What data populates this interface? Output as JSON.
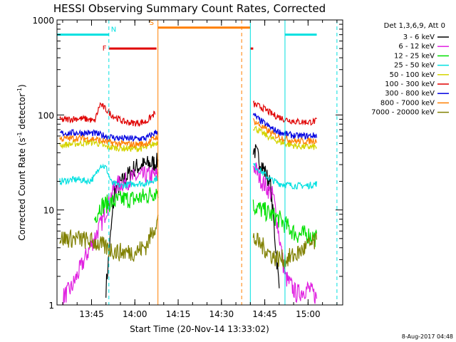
{
  "chart_data": {
    "type": "line",
    "title": "HESSI Observing Summary Count Rates, Corrected",
    "ylabel": "Corrected Count Rate",
    "ylabel_units": "(s",
    "ylabel_sup1": "-1",
    "ylabel_units2": " detector",
    "ylabel_sup2": "-1",
    "ylabel_close": ")",
    "xlabel": "Start Time (20-Nov-14 13:33:02)",
    "yscale": "log",
    "ylim": [
      1,
      1000
    ],
    "xlim": [
      "13:33:02",
      "15:12:00"
    ],
    "x_ticks": [
      {
        "t": "13:45",
        "label": "13:45"
      },
      {
        "t": "14:00",
        "label": "14:00"
      },
      {
        "t": "14:15",
        "label": "14:15"
      },
      {
        "t": "14:30",
        "label": "14:30"
      },
      {
        "t": "14:45",
        "label": "14:45"
      },
      {
        "t": "15:00",
        "label": "15:00"
      }
    ],
    "y_ticks": [
      {
        "v": 1,
        "label": "1"
      },
      {
        "v": 10,
        "label": "10"
      },
      {
        "v": 100,
        "label": "100"
      },
      {
        "v": 1000,
        "label": "1000"
      }
    ],
    "legend": {
      "placement": "right",
      "header": "Det 1,3,6,9, Att 0"
    },
    "series": [
      {
        "name": "3 - 6 keV",
        "color": "#000000",
        "t": [
          "13:33:02",
          "13:50",
          "13:53",
          "13:57",
          "14:00",
          "14:04",
          "14:08",
          "14:09",
          "14:41",
          "14:44",
          "14:47",
          "14:50"
        ],
        "values": [
          null,
          1.5,
          16,
          22,
          28,
          30,
          32,
          null,
          45,
          30,
          18,
          1.5
        ]
      },
      {
        "name": "6 - 12 keV",
        "color": "#e020e0",
        "t": [
          "13:35",
          "13:38",
          "13:49",
          "13:53",
          "13:57",
          "14:00",
          "14:04",
          "14:08",
          "14:09",
          "14:41",
          "14:44",
          "14:48",
          "14:52",
          "14:56",
          "15:00",
          "15:03"
        ],
        "values": [
          1.2,
          1.5,
          8,
          18,
          20,
          22,
          23,
          23,
          null,
          30,
          20,
          14,
          2,
          1.3,
          1.5,
          1.2
        ]
      },
      {
        "name": "12 - 25 keV",
        "color": "#00e000",
        "t": [
          "13:33:02",
          "13:46",
          "13:48",
          "13:52",
          "13:56",
          "14:00",
          "14:04",
          "14:08",
          "14:09",
          "14:41",
          "14:44",
          "14:47",
          "14:50",
          "14:56",
          "15:00",
          "15:03"
        ],
        "values": [
          null,
          8,
          11,
          12,
          13,
          13,
          14,
          16,
          null,
          11,
          10,
          9,
          8,
          5.5,
          5.5,
          5
        ]
      },
      {
        "name": "25 - 50 keV",
        "color": "#00e0e0",
        "t": [
          "13:34",
          "13:40",
          "13:44",
          "13:46",
          "13:48",
          "13:50",
          "13:52",
          "13:55",
          "14:00",
          "14:04",
          "14:08",
          "14:09",
          "14:41",
          "14:44",
          "14:47",
          "14:50",
          "14:55",
          "15:00",
          "15:03"
        ],
        "values": [
          20,
          21,
          20,
          22,
          30,
          28,
          19,
          18,
          19,
          19,
          22,
          null,
          30,
          25,
          21,
          19,
          18,
          18,
          19
        ]
      },
      {
        "name": "50 - 100 keV",
        "color": "#d4d400",
        "t": [
          "13:34",
          "13:40",
          "13:46",
          "13:50",
          "13:54",
          "14:00",
          "14:04",
          "14:08",
          "14:09",
          "14:41",
          "14:44",
          "14:48",
          "14:52",
          "14:56",
          "15:00",
          "15:03"
        ],
        "values": [
          48,
          50,
          52,
          46,
          45,
          44,
          45,
          52,
          null,
          75,
          65,
          55,
          50,
          47,
          46,
          46
        ]
      },
      {
        "name": "100 - 300 keV",
        "color": "#e00000",
        "t": [
          "13:34",
          "13:40",
          "13:44",
          "13:46",
          "13:48",
          "13:52",
          "13:56",
          "14:00",
          "14:04",
          "14:07",
          "14:09",
          "14:41",
          "14:44",
          "14:48",
          "14:52",
          "14:56",
          "15:00",
          "15:03"
        ],
        "values": [
          88,
          92,
          90,
          85,
          130,
          100,
          85,
          82,
          85,
          105,
          null,
          130,
          120,
          100,
          90,
          85,
          84,
          86
        ]
      },
      {
        "name": "300 - 800 keV",
        "color": "#0000e0",
        "t": [
          "13:34",
          "13:40",
          "13:46",
          "13:50",
          "13:54",
          "14:00",
          "14:04",
          "14:08",
          "14:09",
          "14:41",
          "14:44",
          "14:48",
          "14:52",
          "14:56",
          "15:00",
          "15:03"
        ],
        "values": [
          64,
          65,
          64,
          60,
          57,
          56,
          57,
          68,
          null,
          100,
          85,
          70,
          63,
          60,
          60,
          61
        ]
      },
      {
        "name": "800 - 7000 keV",
        "color": "#ff7f00",
        "t": [
          "13:34",
          "13:40",
          "13:46",
          "13:50",
          "13:54",
          "14:00",
          "14:04",
          "14:08",
          "14:09",
          "14:41",
          "14:44",
          "14:48",
          "14:52",
          "14:56",
          "15:00",
          "15:03"
        ],
        "values": [
          56,
          57,
          56,
          52,
          50,
          49,
          50,
          60,
          null,
          88,
          75,
          62,
          56,
          53,
          53,
          54
        ]
      },
      {
        "name": "7000 - 20000 keV",
        "color": "#808000",
        "t": [
          "13:34",
          "13:40",
          "13:46",
          "13:50",
          "13:54",
          "14:00",
          "14:04",
          "14:08",
          "14:09",
          "14:41",
          "14:44",
          "14:48",
          "14:52",
          "14:56",
          "15:00",
          "15:03"
        ],
        "values": [
          5,
          5,
          4.6,
          4.0,
          3.6,
          3.6,
          4.2,
          8,
          null,
          5,
          4.2,
          3.2,
          3.0,
          3.4,
          4.2,
          4.6
        ]
      }
    ],
    "annotations": [
      {
        "label": "N",
        "color": "#00e0e0",
        "segments": [
          [
            "13:33:02",
            "13:51"
          ],
          [
            "14:52",
            "15:03"
          ]
        ],
        "level": 700
      },
      {
        "label": "F",
        "color": "#e00000",
        "segments": [
          [
            "13:51",
            "14:07:30"
          ],
          [
            "14:40",
            "14:41"
          ]
        ],
        "level": 500
      },
      {
        "label": "S",
        "color": "#ff7f00",
        "segments": [
          [
            "14:08",
            "14:40"
          ]
        ],
        "level": 830
      }
    ],
    "vlines": [
      {
        "t": "13:33:02",
        "color": "#00e0e0",
        "style": "solid"
      },
      {
        "t": "13:51",
        "color": "#00e0e0",
        "style": "dashed"
      },
      {
        "t": "14:08",
        "color": "#ff7f00",
        "style": "solid"
      },
      {
        "t": "14:37",
        "color": "#ff7f00",
        "style": "dashed"
      },
      {
        "t": "14:40",
        "color": "#00e0e0",
        "style": "solid"
      },
      {
        "t": "14:52",
        "color": "#00e0e0",
        "style": "solid"
      },
      {
        "t": "15:10",
        "color": "#00e0e0",
        "style": "dashed"
      }
    ]
  },
  "footer": {
    "datestamp": "8-Aug-2017 04:48"
  }
}
